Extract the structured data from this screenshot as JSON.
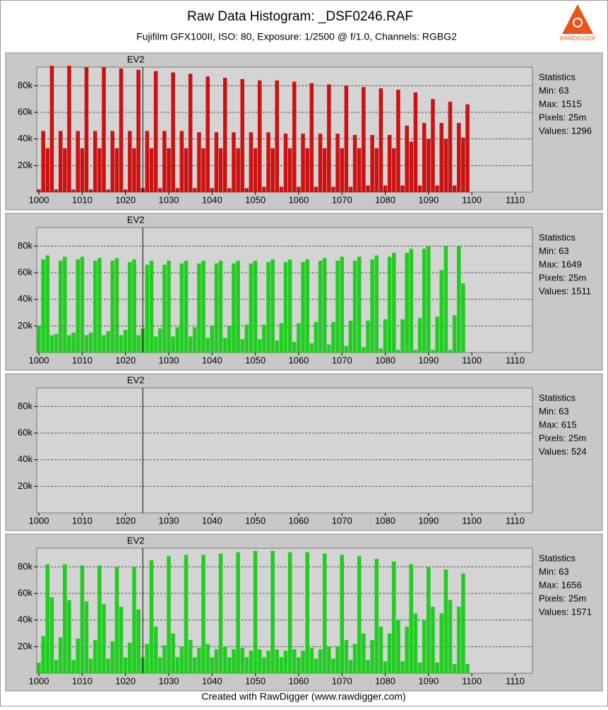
{
  "title": "Raw Data Histogram: _DSF0246.RAF",
  "subtitle": "Fujifilm GFX100II, ISO: 80, Exposure: 1/2500 @ f/1.0, Channels: RGBG2",
  "footer": "Created with RawDigger (www.rawdigger.com)",
  "logo_text": "RAWDIGGER",
  "chart_data": [
    {
      "type": "bar",
      "color": "#cc1111",
      "marker": {
        "label": "EV2",
        "x": 1024
      },
      "stats": [
        "Statistics",
        "Min: 63",
        "Max: 1515",
        "Pixels: 25m",
        "Values: 1296"
      ],
      "xlim": [
        999.5,
        1114
      ],
      "xticks": [
        1000,
        1010,
        1020,
        1030,
        1040,
        1050,
        1060,
        1070,
        1080,
        1090,
        1100,
        1110
      ],
      "ylim": [
        0,
        94000
      ],
      "yticks": [
        {
          "value": 20000,
          "label": "20k"
        },
        {
          "value": 40000,
          "label": "40k"
        },
        {
          "value": 60000,
          "label": "60k"
        },
        {
          "value": 80000,
          "label": "80k"
        }
      ],
      "grid": true,
      "x": [
        1000,
        1001,
        1002,
        1003,
        1004,
        1005,
        1006,
        1007,
        1008,
        1009,
        1010,
        1011,
        1012,
        1013,
        1014,
        1015,
        1016,
        1017,
        1018,
        1019,
        1020,
        1021,
        1022,
        1023,
        1024,
        1025,
        1026,
        1027,
        1028,
        1029,
        1030,
        1031,
        1032,
        1033,
        1034,
        1035,
        1036,
        1037,
        1038,
        1039,
        1040,
        1041,
        1042,
        1043,
        1044,
        1045,
        1046,
        1047,
        1048,
        1049,
        1050,
        1051,
        1052,
        1053,
        1054,
        1055,
        1056,
        1057,
        1058,
        1059,
        1060,
        1061,
        1062,
        1063,
        1064,
        1065,
        1066,
        1067,
        1068,
        1069,
        1070,
        1071,
        1072,
        1073,
        1074,
        1075,
        1076,
        1077,
        1078,
        1079,
        1080,
        1081,
        1082,
        1083,
        1084,
        1085,
        1086,
        1087,
        1088,
        1089,
        1090,
        1091,
        1092,
        1093,
        1094,
        1095,
        1096,
        1097,
        1098,
        1099
      ],
      "values": [
        2000,
        46000,
        33000,
        95000,
        2000,
        46000,
        33000,
        95000,
        2000,
        46000,
        33000,
        94000,
        2000,
        46000,
        33000,
        94000,
        2000,
        46000,
        33000,
        93000,
        2000,
        46000,
        33000,
        92000,
        3000,
        46000,
        33000,
        91000,
        3000,
        46000,
        33000,
        90000,
        3000,
        46000,
        33000,
        89000,
        3000,
        45000,
        33000,
        87000,
        3000,
        45000,
        33000,
        86000,
        3000,
        45000,
        33000,
        85000,
        3000,
        45000,
        33000,
        84000,
        4000,
        45000,
        33000,
        84000,
        4000,
        44000,
        33000,
        83000,
        4000,
        44000,
        33000,
        82000,
        4000,
        44000,
        33000,
        81000,
        4000,
        44000,
        33000,
        80000,
        4000,
        43000,
        33000,
        79000,
        5000,
        43000,
        33000,
        78000,
        5000,
        43000,
        33000,
        77000,
        5000,
        50000,
        38000,
        75000,
        5000,
        52000,
        40000,
        70000,
        5000,
        52000,
        40000,
        68000,
        5000,
        52000,
        41000,
        66000
      ]
    },
    {
      "type": "bar",
      "color": "#22cc22",
      "marker": {
        "label": "EV2",
        "x": 1024
      },
      "stats": [
        "Statistics",
        "Min: 63",
        "Max: 1649",
        "Pixels: 25m",
        "Values: 1511"
      ],
      "xlim": [
        999.5,
        1114
      ],
      "xticks": [
        1000,
        1010,
        1020,
        1030,
        1040,
        1050,
        1060,
        1070,
        1080,
        1090,
        1100,
        1110
      ],
      "ylim": [
        0,
        94000
      ],
      "yticks": [
        {
          "value": 20000,
          "label": "20k"
        },
        {
          "value": 40000,
          "label": "40k"
        },
        {
          "value": 60000,
          "label": "60k"
        },
        {
          "value": 80000,
          "label": "80k"
        }
      ],
      "grid": true,
      "x": [
        1000,
        1001,
        1002,
        1003,
        1004,
        1005,
        1006,
        1007,
        1008,
        1009,
        1010,
        1011,
        1012,
        1013,
        1014,
        1015,
        1016,
        1017,
        1018,
        1019,
        1020,
        1021,
        1022,
        1023,
        1024,
        1025,
        1026,
        1027,
        1028,
        1029,
        1030,
        1031,
        1032,
        1033,
        1034,
        1035,
        1036,
        1037,
        1038,
        1039,
        1040,
        1041,
        1042,
        1043,
        1044,
        1045,
        1046,
        1047,
        1048,
        1049,
        1050,
        1051,
        1052,
        1053,
        1054,
        1055,
        1056,
        1057,
        1058,
        1059,
        1060,
        1061,
        1062,
        1063,
        1064,
        1065,
        1066,
        1067,
        1068,
        1069,
        1070,
        1071,
        1072,
        1073,
        1074,
        1075,
        1076,
        1077,
        1078,
        1079,
        1080,
        1081,
        1082,
        1083,
        1084,
        1085,
        1086,
        1087,
        1088,
        1089,
        1090,
        1091,
        1092,
        1093,
        1094,
        1095,
        1096,
        1097,
        1098
      ],
      "values": [
        20000,
        70000,
        73000,
        13000,
        14000,
        69000,
        72000,
        13000,
        15000,
        70000,
        72000,
        13000,
        15000,
        69000,
        71000,
        13000,
        16000,
        69000,
        71000,
        13000,
        17000,
        68000,
        70000,
        13000,
        18000,
        66000,
        69000,
        12000,
        18000,
        66000,
        69000,
        12000,
        19000,
        67000,
        69000,
        12000,
        19000,
        67000,
        69000,
        11000,
        20000,
        67000,
        69000,
        11000,
        20000,
        67000,
        69000,
        10000,
        21000,
        67000,
        69000,
        10000,
        21000,
        68000,
        70000,
        9000,
        22000,
        68000,
        70000,
        8000,
        22000,
        68000,
        70000,
        7000,
        23000,
        69000,
        71000,
        6000,
        23000,
        69000,
        72000,
        5000,
        24000,
        69000,
        72000,
        4000,
        24000,
        70000,
        73000,
        3000,
        25000,
        72000,
        75000,
        2000,
        25000,
        75000,
        78000,
        2000,
        26000,
        78000,
        80000,
        2000,
        27000,
        62000,
        80000,
        2000,
        28000,
        80000,
        52000
      ]
    },
    {
      "type": "bar",
      "color": "#2222cc",
      "marker": {
        "label": "EV2",
        "x": 1024
      },
      "stats": [
        "Statistics",
        "Min: 63",
        "Max: 615",
        "Pixels: 25m",
        "Values: 524"
      ],
      "xlim": [
        999.5,
        1114
      ],
      "xticks": [
        1000,
        1010,
        1020,
        1030,
        1040,
        1050,
        1060,
        1070,
        1080,
        1090,
        1100,
        1110
      ],
      "ylim": [
        0,
        94000
      ],
      "yticks": [
        {
          "value": 20000,
          "label": "20k"
        },
        {
          "value": 40000,
          "label": "40k"
        },
        {
          "value": 60000,
          "label": "60k"
        },
        {
          "value": 80000,
          "label": "80k"
        }
      ],
      "grid": true
    },
    {
      "type": "bar",
      "color": "#22cc22",
      "marker": {
        "label": "EV2",
        "x": 1024
      },
      "stats": [
        "Statistics",
        "Min: 63",
        "Max: 1656",
        "Pixels: 25m",
        "Values: 1571"
      ],
      "xlim": [
        999.5,
        1114
      ],
      "xticks": [
        1000,
        1010,
        1020,
        1030,
        1040,
        1050,
        1060,
        1070,
        1080,
        1090,
        1100,
        1110
      ],
      "ylim": [
        0,
        94000
      ],
      "yticks": [
        {
          "value": 20000,
          "label": "20k"
        },
        {
          "value": 40000,
          "label": "40k"
        },
        {
          "value": 60000,
          "label": "60k"
        },
        {
          "value": 80000,
          "label": "80k"
        }
      ],
      "grid": true,
      "x": [
        1000,
        1001,
        1002,
        1003,
        1004,
        1005,
        1006,
        1007,
        1008,
        1009,
        1010,
        1011,
        1012,
        1013,
        1014,
        1015,
        1016,
        1017,
        1018,
        1019,
        1020,
        1021,
        1022,
        1023,
        1024,
        1025,
        1026,
        1027,
        1028,
        1029,
        1030,
        1031,
        1032,
        1033,
        1034,
        1035,
        1036,
        1037,
        1038,
        1039,
        1040,
        1041,
        1042,
        1043,
        1044,
        1045,
        1046,
        1047,
        1048,
        1049,
        1050,
        1051,
        1052,
        1053,
        1054,
        1055,
        1056,
        1057,
        1058,
        1059,
        1060,
        1061,
        1062,
        1063,
        1064,
        1065,
        1066,
        1067,
        1068,
        1069,
        1070,
        1071,
        1072,
        1073,
        1074,
        1075,
        1076,
        1077,
        1078,
        1079,
        1080,
        1081,
        1082,
        1083,
        1084,
        1085,
        1086,
        1087,
        1088,
        1089,
        1090,
        1091,
        1092,
        1093,
        1094,
        1095,
        1096,
        1097,
        1098,
        1099
      ],
      "values": [
        8000,
        28000,
        82000,
        57000,
        10000,
        27000,
        82000,
        55000,
        10000,
        26000,
        81000,
        54000,
        11000,
        25000,
        81000,
        52000,
        11000,
        24000,
        80000,
        50000,
        12000,
        23000,
        80000,
        48000,
        12000,
        22000,
        85000,
        35000,
        12000,
        21000,
        88000,
        30000,
        12000,
        20000,
        89000,
        25000,
        12000,
        19000,
        89000,
        22000,
        12000,
        18000,
        90000,
        20000,
        12000,
        18000,
        91000,
        19000,
        12000,
        17000,
        92000,
        18000,
        12000,
        17000,
        92000,
        18000,
        12000,
        17000,
        91000,
        18000,
        12000,
        17000,
        91000,
        19000,
        11000,
        18000,
        90000,
        20000,
        11000,
        20000,
        89000,
        25000,
        10000,
        22000,
        88000,
        30000,
        10000,
        25000,
        86000,
        35000,
        9000,
        30000,
        84000,
        40000,
        9000,
        35000,
        82000,
        45000,
        8000,
        40000,
        80000,
        50000,
        8000,
        45000,
        78000,
        55000,
        7000,
        50000,
        75000,
        7000
      ]
    }
  ]
}
